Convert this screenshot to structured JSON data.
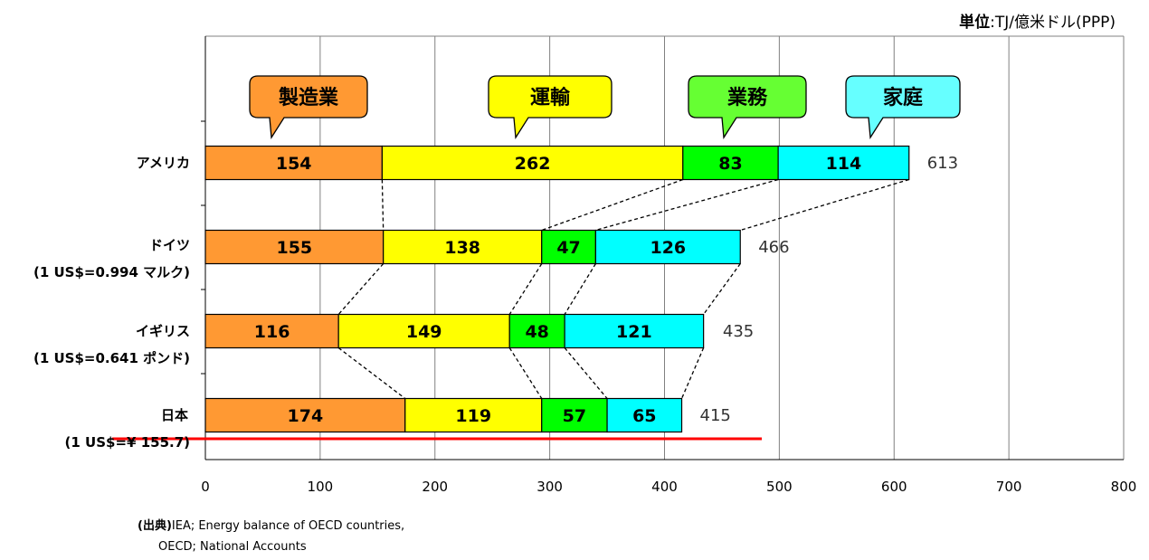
{
  "unit_label": {
    "prefix": "単位",
    "text": ":TJ/億米ドル(PPP)"
  },
  "source": {
    "prefix": "(出典)",
    "line1": "IEA; Energy balance of OECD countries,",
    "line2": "OECD; National Accounts"
  },
  "chart_data": {
    "type": "bar",
    "orientation": "horizontal",
    "stacked": true,
    "categories": [
      "アメリカ",
      "ドイツ",
      "イギリス",
      "日本"
    ],
    "category_notes": [
      "",
      "(1 US$=0.994 マルク)",
      "(1 US$=0.641 ポンド)",
      "(1 US$=¥ 155.7)"
    ],
    "series": [
      {
        "name": "製造業",
        "values": [
          154,
          155,
          116,
          174
        ],
        "color": "#FF9933"
      },
      {
        "name": "運輸",
        "values": [
          262,
          138,
          149,
          119
        ],
        "color": "#FFFF00"
      },
      {
        "name": "業務",
        "values": [
          83,
          47,
          48,
          57
        ],
        "color": "#00FF00"
      },
      {
        "name": "家庭",
        "values": [
          114,
          126,
          121,
          65
        ],
        "color": "#00FFFF"
      }
    ],
    "totals": [
      613,
      466,
      435,
      415
    ],
    "xlim": [
      0,
      800
    ],
    "xticks": [
      0,
      100,
      200,
      300,
      400,
      500,
      600,
      700,
      800
    ],
    "grid": true,
    "legend": "callouts-top",
    "highlight_color": "#FF0000"
  }
}
